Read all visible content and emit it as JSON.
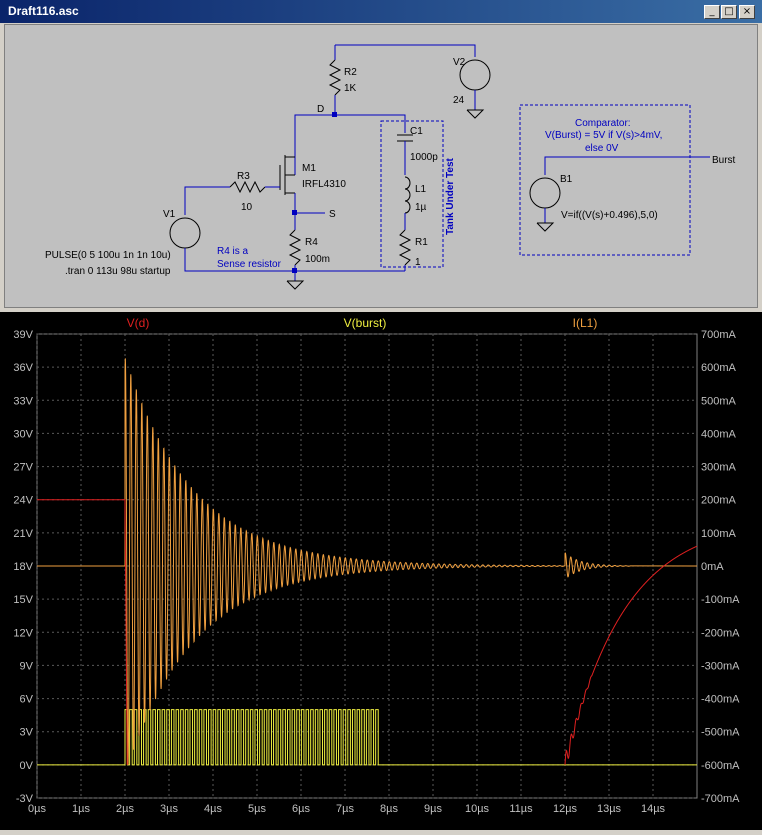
{
  "window": {
    "title": "Draft116.asc",
    "minimize_icon": "minimize-icon",
    "maximize_icon": "maximize-icon",
    "close_icon": "close-icon"
  },
  "schematic": {
    "components": {
      "r2": {
        "name": "R2",
        "value": "1K"
      },
      "v2": {
        "name": "V2",
        "value": "24"
      },
      "d_label": "D",
      "c1": {
        "name": "C1",
        "value": "1000p"
      },
      "m1": {
        "name": "M1",
        "value": "IRFL4310"
      },
      "r3": {
        "name": "R3",
        "value": "10"
      },
      "l1": {
        "name": "L1",
        "value": "1µ"
      },
      "s_label": "S",
      "v1": {
        "name": "V1"
      },
      "r4": {
        "name": "R4",
        "value": "100m"
      },
      "r1": {
        "name": "R1",
        "value": "1"
      },
      "b1": {
        "name": "B1",
        "expr": "V=if((V(s)+0.496),5,0)"
      },
      "burst_label": "Burst"
    },
    "notes": {
      "pulse": "PULSE(0 5 100u 1n 1n 10u)",
      "tran": ".tran 0 113u 98u startup",
      "r4_note_1": "R4 is a",
      "r4_note_2": "Sense resistor",
      "tank": "Tank Under Test",
      "comp_1": "Comparator:",
      "comp_2": "V(Burst) = 5V if V(s)>4mV,",
      "comp_3": "else 0V"
    }
  },
  "plot": {
    "traces": [
      {
        "name": "V(d)",
        "color": "#e02020"
      },
      {
        "name": "V(burst)",
        "color": "#f0f040"
      },
      {
        "name": "I(L1)",
        "color": "#f0a040"
      }
    ],
    "left_axis": [
      "39V",
      "36V",
      "33V",
      "30V",
      "27V",
      "24V",
      "21V",
      "18V",
      "15V",
      "12V",
      "9V",
      "6V",
      "3V",
      "0V",
      "-3V"
    ],
    "right_axis": [
      "700mA",
      "600mA",
      "500mA",
      "400mA",
      "300mA",
      "200mA",
      "100mA",
      "0mA",
      "-100mA",
      "-200mA",
      "-300mA",
      "-400mA",
      "-500mA",
      "-600mA",
      "-700mA"
    ],
    "x_axis": [
      "0µs",
      "1µs",
      "2µs",
      "3µs",
      "4µs",
      "5µs",
      "6µs",
      "7µs",
      "8µs",
      "9µs",
      "10µs",
      "11µs",
      "12µs",
      "13µs",
      "14µs"
    ]
  },
  "chart_data": {
    "type": "line",
    "x_unit": "µs",
    "xlim": [
      0,
      15
    ],
    "y_left_lim": [
      -3,
      39
    ],
    "y_right_lim": [
      -700,
      700
    ],
    "grid": true,
    "series": [
      {
        "name": "V(d)",
        "color": "#e02020",
        "axis": "left",
        "description_points": [
          [
            0,
            24
          ],
          [
            2.0,
            24
          ],
          [
            2.05,
            0
          ],
          [
            12.0,
            0
          ],
          [
            12.05,
            -600
          ],
          [
            13.0,
            -150
          ],
          [
            14.0,
            80
          ],
          [
            15.0,
            130
          ]
        ]
      },
      {
        "name": "V(burst)",
        "color": "#f0f040",
        "axis": "left",
        "description_points": [
          [
            0,
            0
          ],
          [
            2.0,
            0
          ],
          [
            2.0,
            5
          ],
          [
            7.75,
            5
          ],
          [
            7.75,
            0
          ],
          [
            15,
            0
          ]
        ]
      },
      {
        "name": "I(L1)",
        "color": "#f0a040",
        "axis": "right",
        "description_points": [
          [
            0,
            0
          ],
          [
            2.0,
            0
          ],
          [
            2.1,
            610
          ],
          [
            4.0,
            300
          ],
          [
            6.0,
            70
          ],
          [
            8.0,
            10
          ],
          [
            12.0,
            0
          ],
          [
            12.1,
            30
          ],
          [
            13.0,
            0
          ],
          [
            15,
            0
          ]
        ]
      }
    ]
  }
}
